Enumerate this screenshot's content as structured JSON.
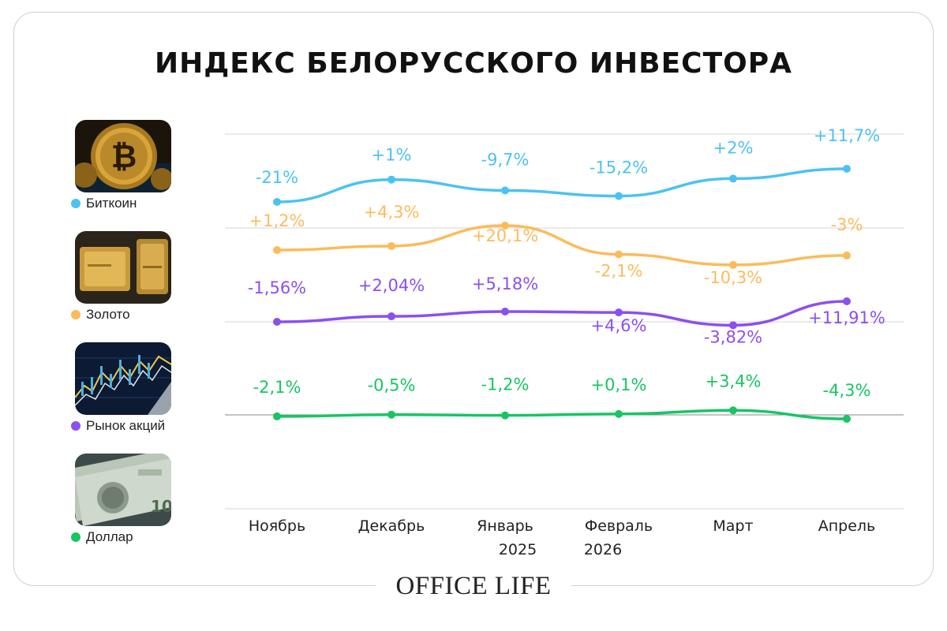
{
  "title": "ИНДЕКС БЕЛОРУССКОГО ИНВЕСТОРА",
  "brand": "OFFICE LIFE",
  "legend": [
    {
      "label": "Биткоин",
      "color": "#4cc2f2",
      "icon": "bitcoin-coin-photo"
    },
    {
      "label": "Золото",
      "color": "#fcbb5b",
      "icon": "gold-bars-photo"
    },
    {
      "label": "Рынок акций",
      "color": "#8c4ff0",
      "icon": "stock-chart-photo"
    },
    {
      "label": "Доллар",
      "color": "#17c564",
      "icon": "dollar-banknotes-photo"
    }
  ],
  "chart_data": {
    "type": "line",
    "categories": [
      "Ноябрь",
      "Декабрь",
      "Январь",
      "Февраль",
      "Март",
      "Апрель"
    ],
    "category_sublabels": [
      "",
      "",
      "2025",
      "2026",
      "",
      ""
    ],
    "grid": true,
    "legend_position": "left",
    "series": [
      {
        "name": "Биткоин",
        "color": "#4cc2f2",
        "values": [
          -21,
          1,
          -9.7,
          -15.2,
          2,
          11.7
        ],
        "labels": [
          "-21%",
          "+1%",
          "-9,7%",
          "-15,2%",
          "+2%",
          "+11,7%"
        ]
      },
      {
        "name": "Золото",
        "color": "#fcbb5b",
        "values": [
          1.2,
          4.3,
          20.1,
          -2.1,
          -10.3,
          -3
        ],
        "labels": [
          "+1,2%",
          "+4,3%",
          "+20,1%",
          "-2,1%",
          "-10,3%",
          "-3%"
        ]
      },
      {
        "name": "Рынок акций",
        "color": "#8c4ff0",
        "values": [
          -1.56,
          2.04,
          5.18,
          4.6,
          -3.82,
          11.91
        ],
        "labels": [
          "-1,56%",
          "+2,04%",
          "+5,18%",
          "+4,6%",
          "-3,82%",
          "+11,91%"
        ]
      },
      {
        "name": "Доллар",
        "color": "#17c564",
        "values": [
          -2.1,
          -0.5,
          -1.2,
          0.1,
          3.4,
          -4.3
        ],
        "labels": [
          "-2,1%",
          "-0,5%",
          "-1,2%",
          "+0,1%",
          "+3,4%",
          "-4,3%"
        ]
      }
    ]
  }
}
